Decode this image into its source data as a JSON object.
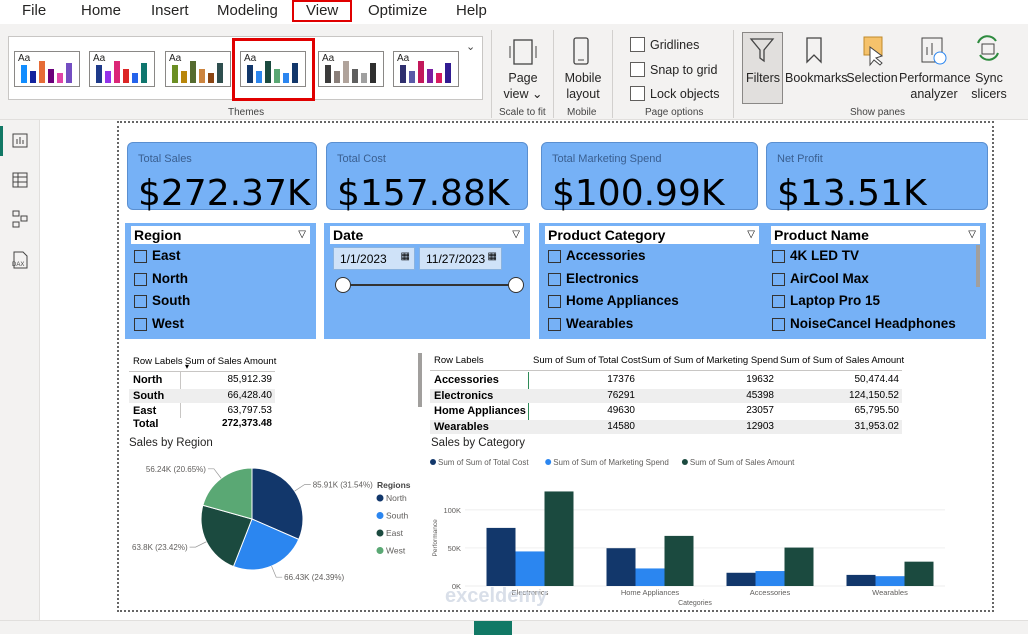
{
  "menu": {
    "items": [
      "File",
      "Home",
      "Insert",
      "Modeling",
      "View",
      "Optimize",
      "Help"
    ],
    "active": "View"
  },
  "ribbon": {
    "themes_label": "Themes",
    "theme_aa": "Aa",
    "page_view": {
      "line1": "Page",
      "line2": "view ⌄",
      "group": "Scale to fit"
    },
    "mobile": {
      "line1": "Mobile",
      "line2": "layout",
      "group": "Mobile"
    },
    "page_options": {
      "gridlines": "Gridlines",
      "snap": "Snap to grid",
      "lock": "Lock objects",
      "group": "Page options"
    },
    "show_panes": {
      "filters": "Filters",
      "bookmarks": "Bookmarks",
      "selection": "Selection",
      "performance_1": "Performance",
      "performance_2": "analyzer",
      "sync_1": "Sync",
      "sync_2": "slicers",
      "group": "Show panes"
    },
    "colors": {
      "highlight": "#e00000"
    }
  },
  "cards": [
    {
      "label": "Total Sales",
      "value": "$272.37K"
    },
    {
      "label": "Total Cost",
      "value": "$157.88K"
    },
    {
      "label": "Total Marketing Spend",
      "value": "$100.99K"
    },
    {
      "label": "Net Profit",
      "value": "$13.51K"
    }
  ],
  "slicers": {
    "region": {
      "title": "Region",
      "items": [
        "East",
        "North",
        "South",
        "West"
      ]
    },
    "date": {
      "title": "Date",
      "start": "1/1/2023",
      "end": "11/27/2023"
    },
    "category": {
      "title": "Product Category",
      "items": [
        "Accessories",
        "Electronics",
        "Home Appliances",
        "Wearables"
      ]
    },
    "product": {
      "title": "Product Name",
      "items": [
        "4K LED TV",
        "AirCool Max",
        "Laptop Pro 15",
        "NoiseCancel Headphones"
      ]
    }
  },
  "region_table": {
    "headers": [
      "Row Labels",
      "Sum of Sales Amount"
    ],
    "rows": [
      [
        "North",
        "85,912.39"
      ],
      [
        "South",
        "66,428.40"
      ],
      [
        "East",
        "63,797.53"
      ]
    ],
    "total": [
      "Total",
      "272,373.48"
    ]
  },
  "category_table": {
    "headers": [
      "Row Labels",
      "Sum of Sum of Total Cost",
      "Sum of Sum of Marketing Spend",
      "Sum of Sum of Sales Amount"
    ],
    "rows": [
      [
        "Accessories",
        "17376",
        "19632",
        "50,474.44"
      ],
      [
        "Electronics",
        "76291",
        "45398",
        "124,150.52"
      ],
      [
        "Home Appliances",
        "49630",
        "23057",
        "65,795.50"
      ],
      [
        "Wearables",
        "14580",
        "12903",
        "31,953.02"
      ]
    ]
  },
  "pie": {
    "title": "Sales by Region",
    "legend_title": "Regions",
    "slices": [
      {
        "name": "North",
        "value": 85.91,
        "pct": 31.54,
        "label": "85.91K (31.54%)",
        "color": "#12376b"
      },
      {
        "name": "South",
        "value": 66.43,
        "pct": 24.39,
        "label": "66.43K (24.39%)",
        "color": "#2b86f0"
      },
      {
        "name": "East",
        "value": 63.8,
        "pct": 23.42,
        "label": "63.8K (23.42%)",
        "color": "#1b4a3f"
      },
      {
        "name": "West",
        "value": 56.24,
        "pct": 20.65,
        "label": "56.24K (20.65%)",
        "color": "#5aa874"
      }
    ]
  },
  "chart_data": {
    "type": "bar",
    "title": "Sales by Category",
    "xlabel": "Categories",
    "ylabel": "Performance",
    "categories": [
      "Electronics",
      "Home Appliances",
      "Accessories",
      "Wearables"
    ],
    "series": [
      {
        "name": "Sum of Sum of Total Cost",
        "values": [
          76291,
          49630,
          17376,
          14580
        ],
        "color": "#12376b"
      },
      {
        "name": "Sum of Sum of Marketing Spend",
        "values": [
          45398,
          23057,
          19632,
          12903
        ],
        "color": "#2b86f0"
      },
      {
        "name": "Sum of Sum of Sales Amount",
        "values": [
          124150.52,
          65795.5,
          50474.44,
          31953.02
        ],
        "color": "#1b4a3f"
      }
    ],
    "yticks": [
      "100K",
      "50K",
      "0K"
    ],
    "ylim": [
      0,
      130000
    ],
    "legend_position": "top-left"
  },
  "watermark": "exceldemy"
}
